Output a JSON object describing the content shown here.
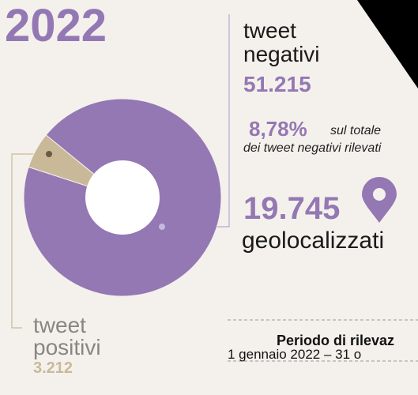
{
  "chart_data": {
    "type": "pie",
    "title": "2022",
    "categories": [
      "tweet negativi",
      "tweet positivi"
    ],
    "values": [
      51215,
      3212
    ],
    "value_labels": [
      "51.215",
      "3.212"
    ],
    "colors": [
      "#9478b4",
      "#c9b998"
    ],
    "donut": true,
    "annotations": {
      "share": "8,78%",
      "share_note_1": "sul totale",
      "share_note_2": "dei tweet negativi rilevati",
      "geo_count": "19.745",
      "geo_label": "geolocalizzati",
      "period_title": "Periodo di rilevaz",
      "period_range": "1 gennaio 2022 – 31 o"
    }
  }
}
